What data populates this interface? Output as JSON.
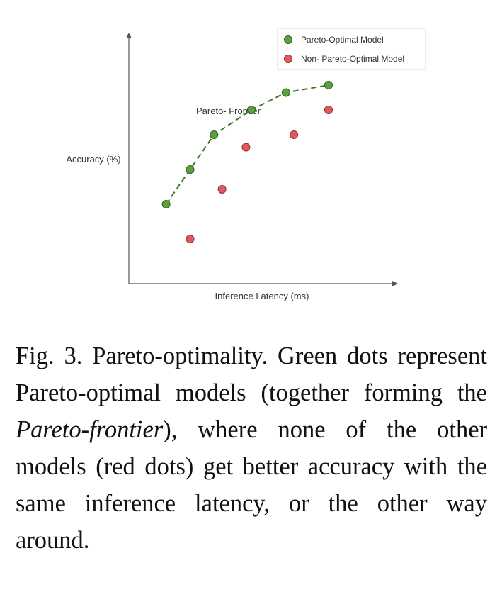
{
  "chart_data": {
    "type": "scatter",
    "xlabel": "Inference Latency (ms)",
    "ylabel": "Accuracy (%)",
    "xlim": [
      0,
      10
    ],
    "ylim": [
      0,
      10
    ],
    "grid": false,
    "legend_position": "top-right",
    "annotation": "Pareto- Frontier",
    "series": [
      {
        "name": "Pareto-Optimal Model",
        "color": "#5fa03e",
        "line": "dashed",
        "points": [
          {
            "x": 1.4,
            "y": 3.2
          },
          {
            "x": 2.3,
            "y": 4.6
          },
          {
            "x": 3.2,
            "y": 6.0
          },
          {
            "x": 4.6,
            "y": 7.0
          },
          {
            "x": 5.9,
            "y": 7.7
          },
          {
            "x": 7.5,
            "y": 8.0
          }
        ]
      },
      {
        "name": "Non- Pareto-Optimal Model",
        "color": "#dd5a5f",
        "line": "none",
        "points": [
          {
            "x": 2.3,
            "y": 1.8
          },
          {
            "x": 3.5,
            "y": 3.8
          },
          {
            "x": 4.4,
            "y": 5.5
          },
          {
            "x": 6.2,
            "y": 6.0
          },
          {
            "x": 7.5,
            "y": 7.0
          }
        ]
      }
    ]
  },
  "caption": {
    "prefix": "Fig. 3.  Pareto-optimality. Green dots represent Pareto-optimal models (together forming the ",
    "emphasis": "Pareto-frontier",
    "suffix": "), where none of the other models (red dots) get better accuracy with the same inference latency, or the other way around."
  }
}
